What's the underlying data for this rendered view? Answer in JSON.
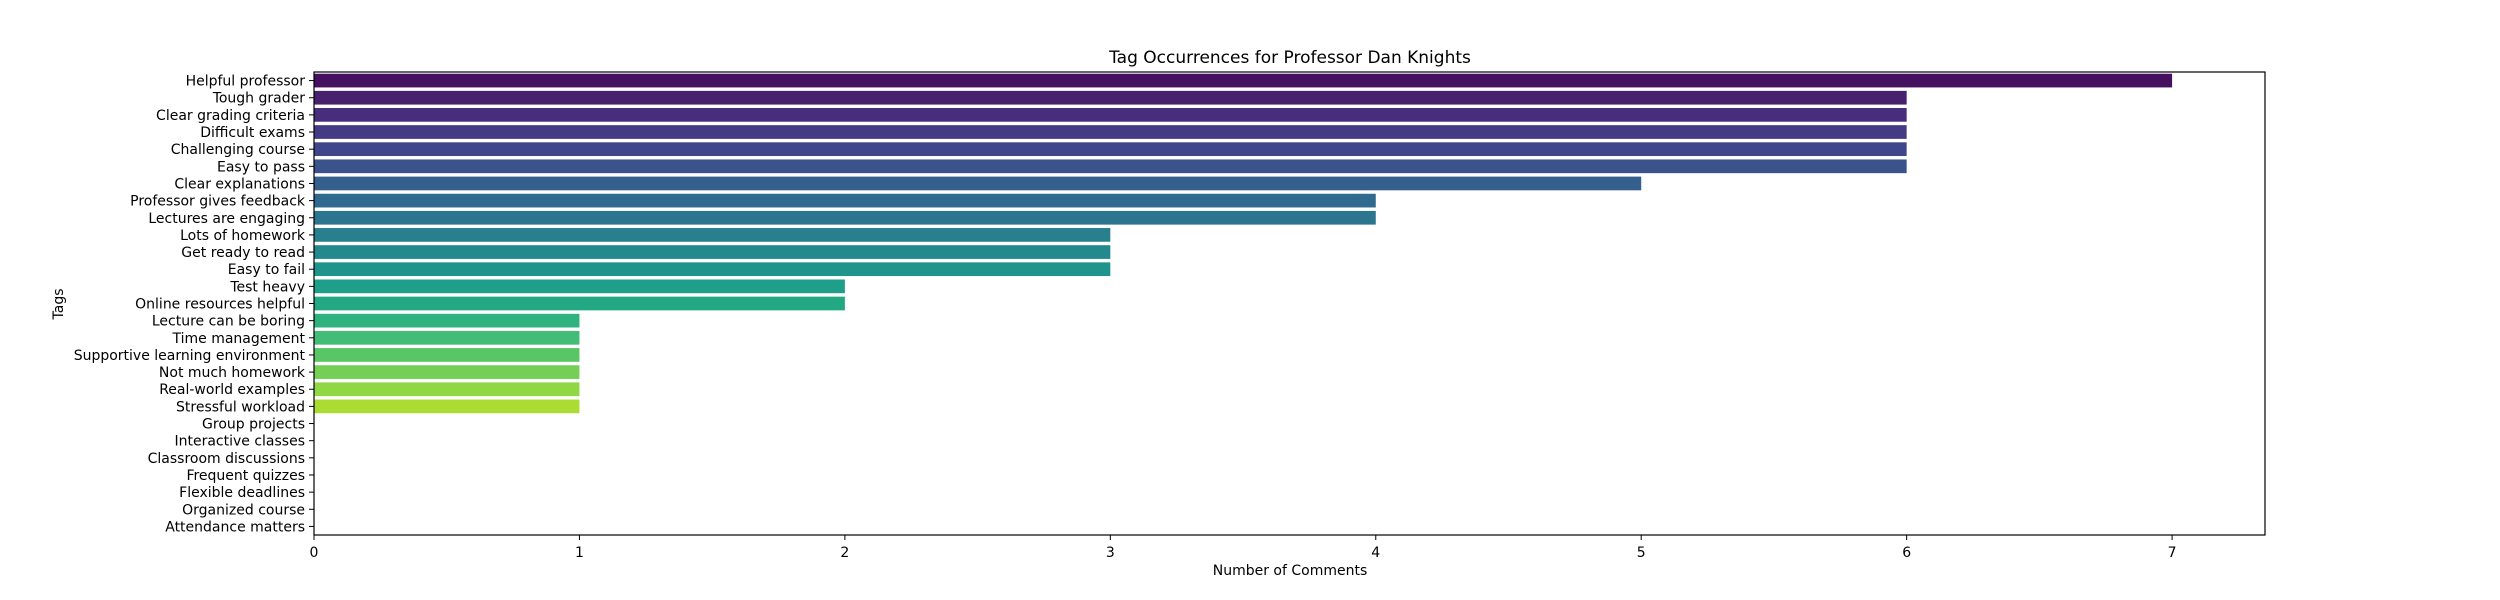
{
  "chart_data": {
    "type": "bar",
    "orientation": "horizontal",
    "title": "Tag Occurrences for Professor Dan Knights",
    "xlabel": "Number of Comments",
    "ylabel": "Tags",
    "xlim": [
      0,
      7.35
    ],
    "xticks": [
      "0",
      "1",
      "2",
      "3",
      "4",
      "5",
      "6",
      "7"
    ],
    "grid": false,
    "categories": [
      "Helpful professor",
      "Tough grader",
      "Clear grading criteria",
      "Difficult exams",
      "Challenging course",
      "Easy to pass",
      "Clear explanations",
      "Professor gives feedback",
      "Lectures are engaging",
      "Lots of homework",
      "Get ready to read",
      "Easy to fail",
      "Test heavy",
      "Online resources helpful",
      "Lecture can be boring",
      "Time management",
      "Supportive learning environment",
      "Not much homework",
      "Real-world examples",
      "Stressful workload",
      "Group projects",
      "Interactive classes",
      "Classroom discussions",
      "Frequent quizzes",
      "Flexible deadlines",
      "Organized course",
      "Attendance matters"
    ],
    "values": [
      7,
      6,
      6,
      6,
      6,
      6,
      5,
      4,
      4,
      3,
      3,
      3,
      2,
      2,
      1,
      1,
      1,
      1,
      1,
      1,
      0,
      0,
      0,
      0,
      0,
      0,
      0
    ],
    "colors": [
      "#45105f",
      "#48216e",
      "#472d7b",
      "#453a84",
      "#40468a",
      "#3a538b",
      "#355f8d",
      "#306a8e",
      "#2c758e",
      "#28808e",
      "#24898d",
      "#20938c",
      "#1f9e89",
      "#23a884",
      "#2fb37e",
      "#42bc76",
      "#59c665",
      "#73d055",
      "#8fd744",
      "#abdc32",
      "#c9e020",
      "#e5e419",
      "#f0e624",
      "#fde725",
      "#fde725",
      "#fde725",
      "#fde725"
    ]
  }
}
